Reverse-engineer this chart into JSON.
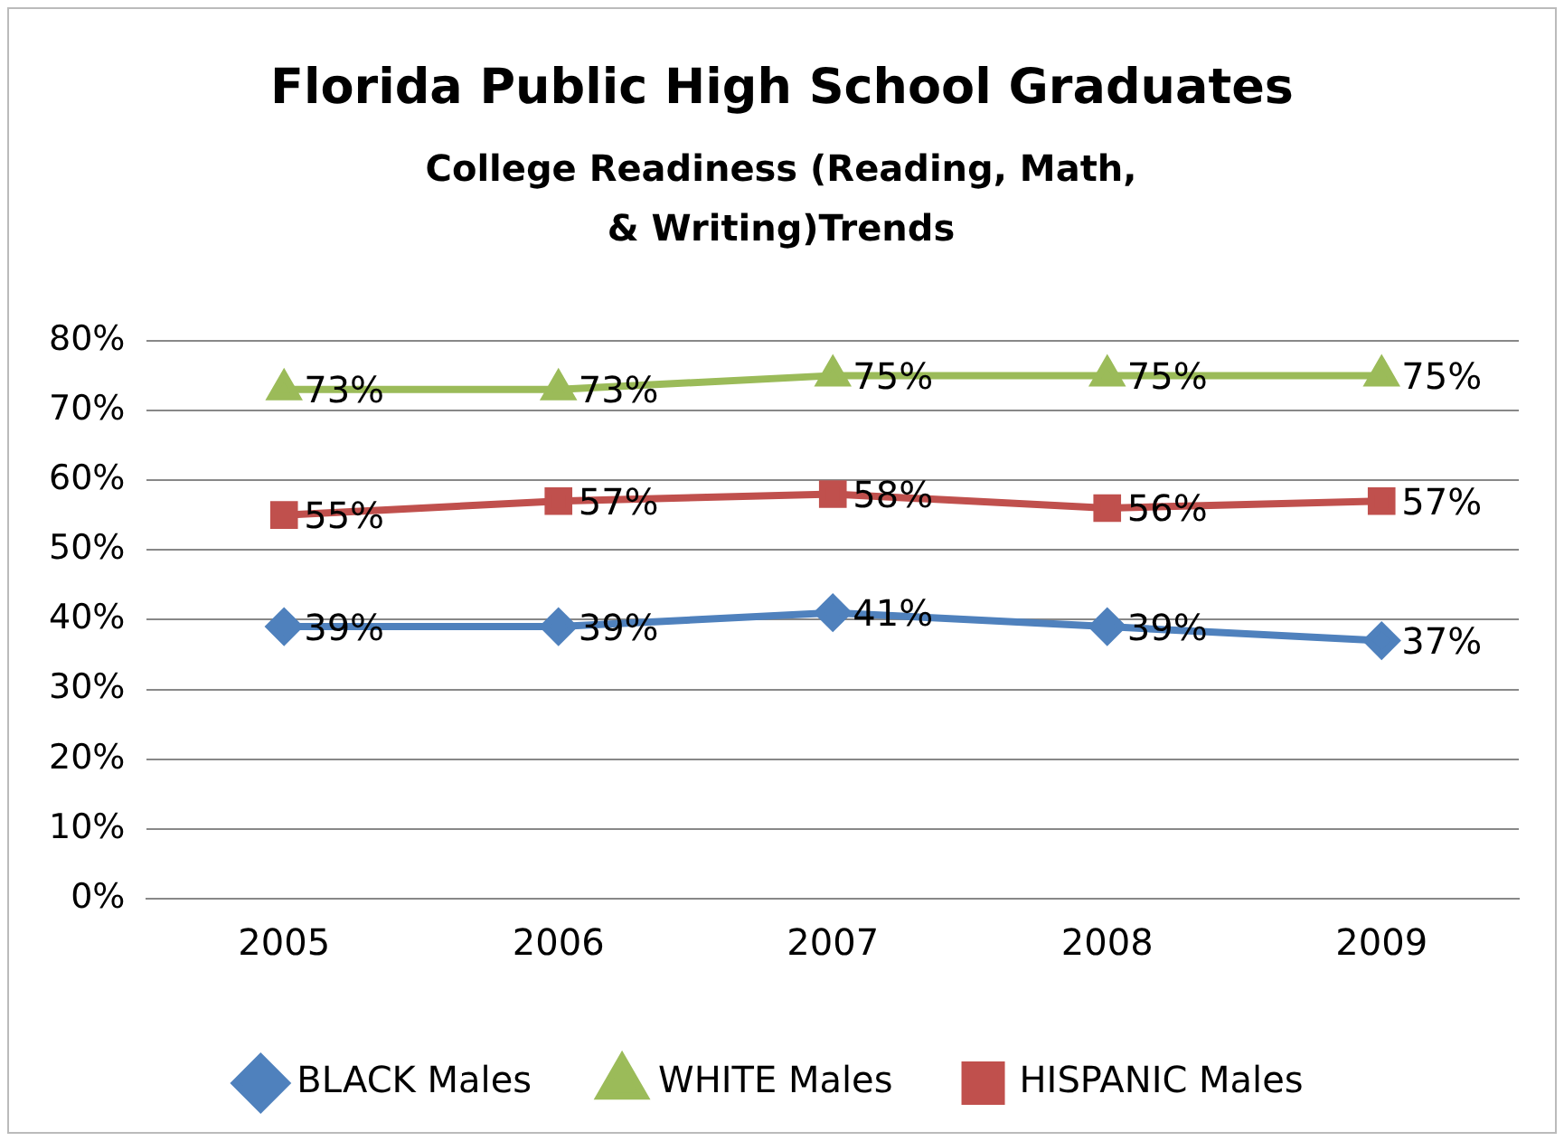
{
  "chart_data": {
    "type": "line",
    "title": "Florida Public High School Graduates",
    "subtitle": "College Readiness (Reading, Math, & Writing)Trends",
    "categories": [
      "2005",
      "2006",
      "2007",
      "2008",
      "2009"
    ],
    "series": [
      {
        "name": "BLACK Males",
        "color": "#4f81bd",
        "marker": "diamond",
        "values": [
          39,
          39,
          41,
          39,
          37
        ],
        "value_labels": [
          "39%",
          "39%",
          "41%",
          "39%",
          "37%"
        ]
      },
      {
        "name": "WHITE Males",
        "color": "#9bbb59",
        "marker": "triangle",
        "values": [
          73,
          73,
          75,
          75,
          75
        ],
        "value_labels": [
          "73%",
          "73%",
          "75%",
          "75%",
          "75%"
        ]
      },
      {
        "name": "HISPANIC Males",
        "color": "#c0504d",
        "marker": "square",
        "values": [
          55,
          57,
          58,
          56,
          57
        ],
        "value_labels": [
          "55%",
          "57%",
          "58%",
          "56%",
          "57%"
        ]
      }
    ],
    "ylim": [
      0,
      80
    ],
    "yticks": [
      {
        "value": 0,
        "label": "0%"
      },
      {
        "value": 10,
        "label": "10%"
      },
      {
        "value": 20,
        "label": "20%"
      },
      {
        "value": 30,
        "label": "30%"
      },
      {
        "value": 40,
        "label": "40%"
      },
      {
        "value": 50,
        "label": "50%"
      },
      {
        "value": 60,
        "label": "60%"
      },
      {
        "value": 70,
        "label": "70%"
      },
      {
        "value": 80,
        "label": "80%"
      }
    ],
    "grid": "y",
    "legend": "bottom",
    "line_style": "solid"
  }
}
